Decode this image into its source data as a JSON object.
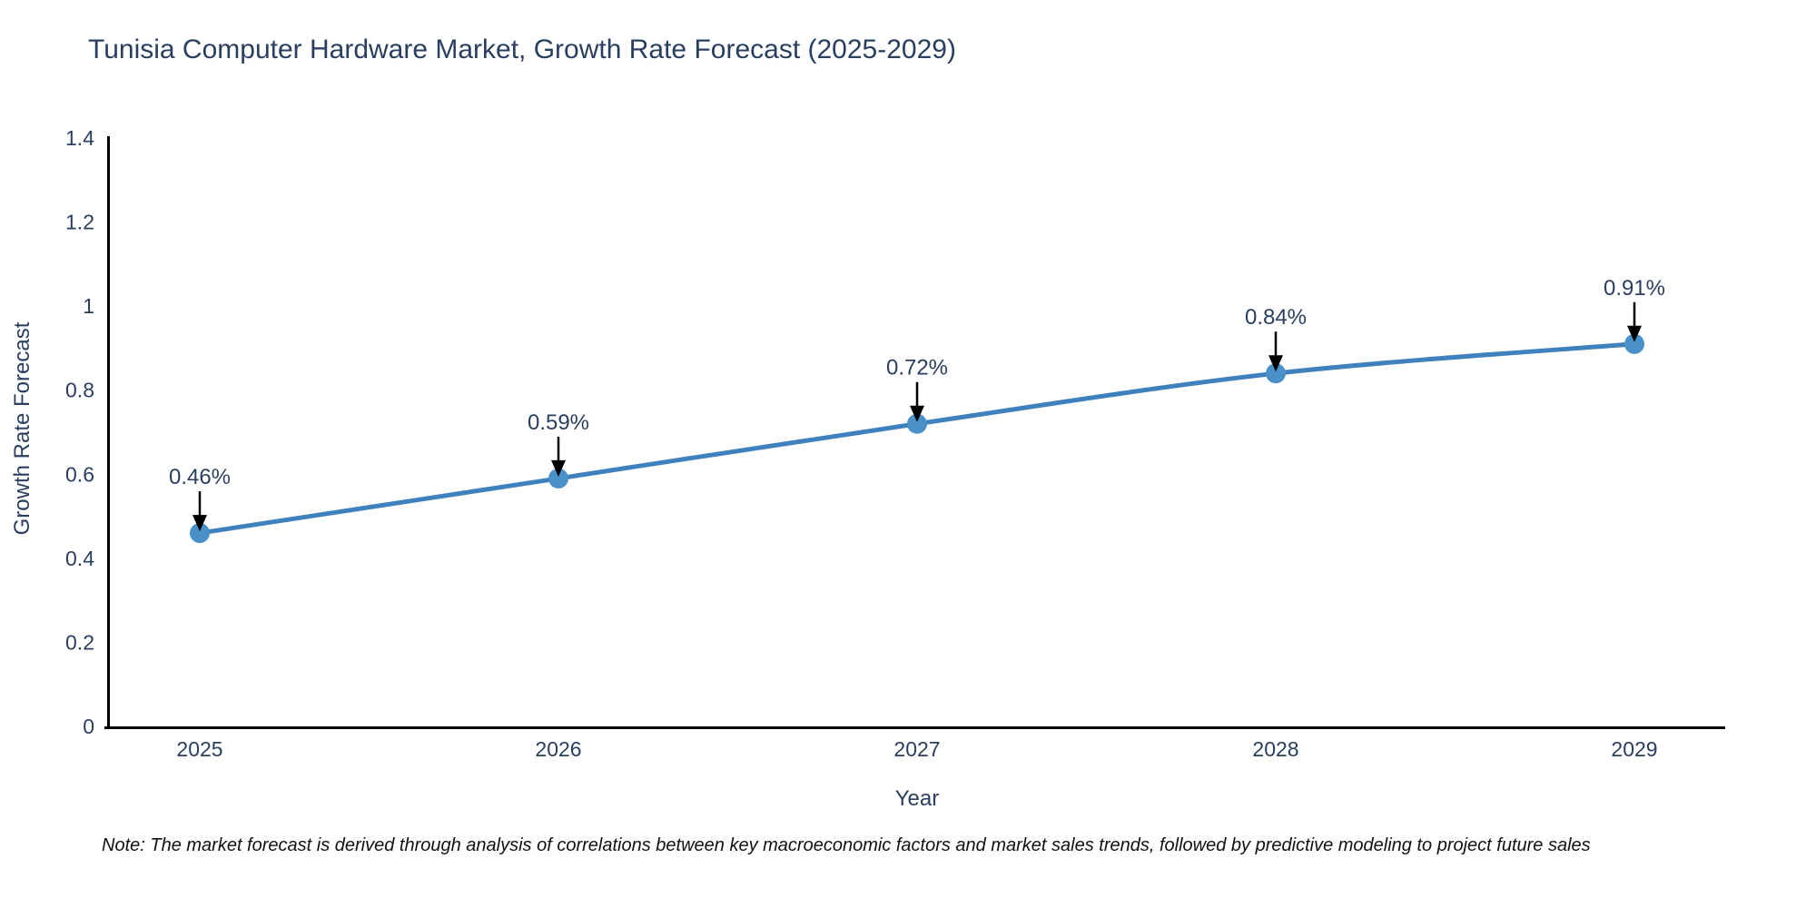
{
  "title": "Tunisia Computer Hardware Market, Growth Rate Forecast (2025-2029)",
  "note": "Note: The market forecast is derived through analysis of correlations between key macroeconomic factors and market sales trends, followed by predictive modeling to project future sales",
  "chart_data": {
    "type": "line",
    "title": "Tunisia Computer Hardware Market, Growth Rate Forecast (2025-2029)",
    "x": [
      "2025",
      "2026",
      "2027",
      "2028",
      "2029"
    ],
    "values": [
      0.46,
      0.59,
      0.72,
      0.84,
      0.91
    ],
    "point_labels": [
      "0.46%",
      "0.59%",
      "0.72%",
      "0.84%",
      "0.91%"
    ],
    "xlabel": "Year",
    "ylabel": "Growth Rate Forecast",
    "ylim": [
      0,
      1.4
    ],
    "yticks": [
      0,
      0.2,
      0.4,
      0.6,
      0.8,
      1,
      1.2,
      1.4
    ],
    "grid": false,
    "legend": "none",
    "line_shape": "spline",
    "colors": {
      "line": "#3f81bd",
      "marker": "#4a90c9",
      "axis": "#000000",
      "tick_text": "#2a3f5f",
      "annotation_text": "#2a3f5f",
      "arrow": "#000000"
    }
  }
}
